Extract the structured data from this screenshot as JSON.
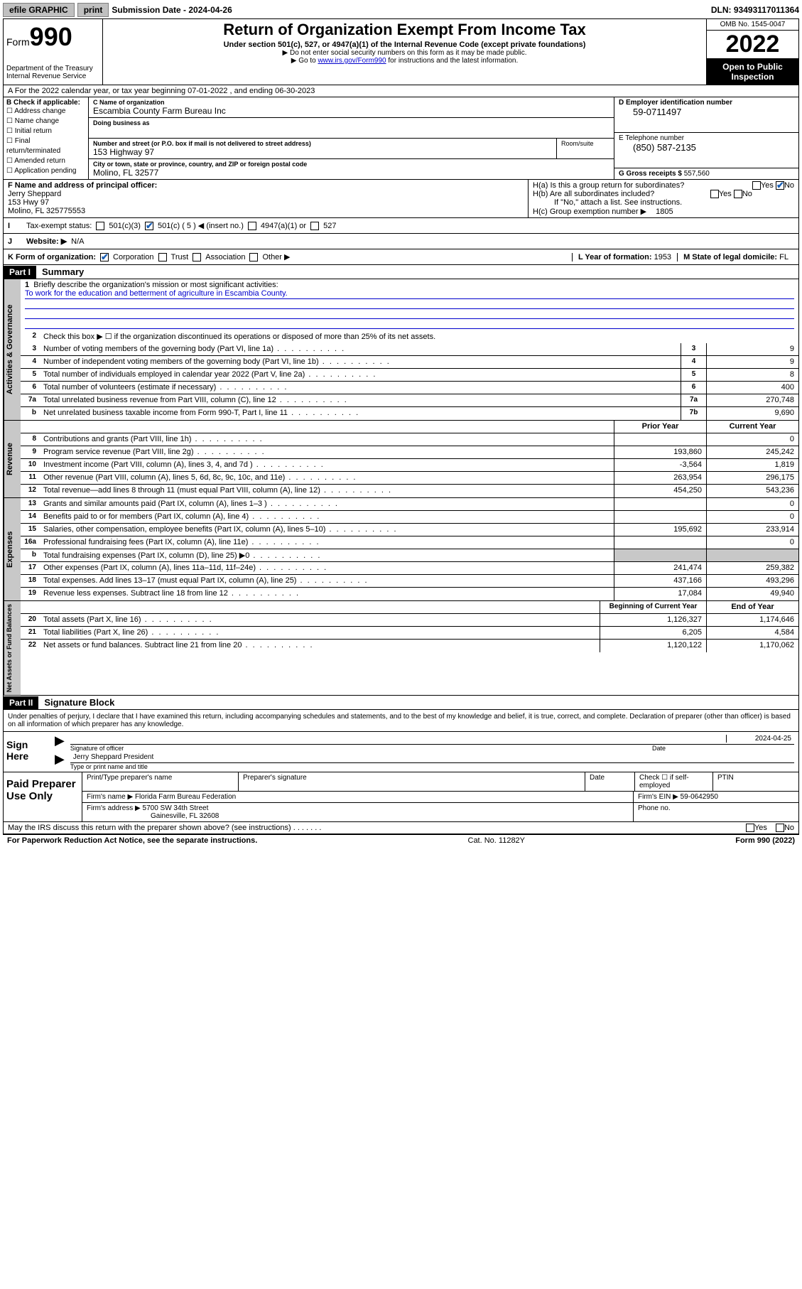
{
  "topbar": {
    "efile": "efile GRAPHIC",
    "print": "print",
    "sub_label": "Submission Date - 2024-04-26",
    "dln": "DLN: 93493117011364"
  },
  "header": {
    "form_word": "Form",
    "form_num": "990",
    "dept": "Department of the Treasury\nInternal Revenue Service",
    "title": "Return of Organization Exempt From Income Tax",
    "sub1": "Under section 501(c), 527, or 4947(a)(1) of the Internal Revenue Code (except private foundations)",
    "sub2": "▶ Do not enter social security numbers on this form as it may be made public.",
    "sub3_pre": "▶ Go to ",
    "sub3_link": "www.irs.gov/Form990",
    "sub3_post": " for instructions and the latest information.",
    "omb": "OMB No. 1545-0047",
    "year": "2022",
    "inspection": "Open to Public Inspection"
  },
  "row_a": "A For the 2022 calendar year, or tax year beginning 07-01-2022   , and ending 06-30-2023",
  "col_b": {
    "title": "B Check if applicable:",
    "items": [
      "Address change",
      "Name change",
      "Initial return",
      "Final return/terminated",
      "Amended return",
      "Application pending"
    ]
  },
  "c": {
    "name_lbl": "C Name of organization",
    "name": "Escambia County Farm Bureau Inc",
    "dba_lbl": "Doing business as",
    "addr_lbl": "Number and street (or P.O. box if mail is not delivered to street address)",
    "room_lbl": "Room/suite",
    "addr": "153 Highway 97",
    "city_lbl": "City or town, state or province, country, and ZIP or foreign postal code",
    "city": "Molino, FL  32577"
  },
  "d": {
    "lbl": "D Employer identification number",
    "val": "59-0711497"
  },
  "e": {
    "lbl": "E Telephone number",
    "val": "(850) 587-2135"
  },
  "g": {
    "lbl": "G Gross receipts $",
    "val": "557,560"
  },
  "f": {
    "lbl": "F Name and address of principal officer:",
    "name": "Jerry Sheppard",
    "addr1": "153 Hwy 97",
    "addr2": "Molino, FL  325775553"
  },
  "h": {
    "a": "H(a)  Is this a group return for subordinates?",
    "b": "H(b)  Are all subordinates included?",
    "b_note": "If \"No,\" attach a list. See instructions.",
    "c": "H(c)  Group exemption number ▶",
    "c_val": "1805",
    "yes": "Yes",
    "no": "No"
  },
  "i": {
    "lbl": "Tax-exempt status:",
    "opts": [
      "501(c)(3)",
      "501(c) ( 5 ) ◀ (insert no.)",
      "4947(a)(1) or",
      "527"
    ]
  },
  "j": {
    "lbl": "Website: ▶",
    "val": "N/A"
  },
  "k": {
    "lbl": "K Form of organization:",
    "opts": [
      "Corporation",
      "Trust",
      "Association",
      "Other ▶"
    ],
    "l_lbl": "L Year of formation:",
    "l_val": "1953",
    "m_lbl": "M State of legal domicile:",
    "m_val": "FL"
  },
  "part1": {
    "hdr": "Part I",
    "title": "Summary"
  },
  "p1": {
    "l1": "Briefly describe the organization's mission or most significant activities:",
    "mission": "To work for the education and betterment of agriculture in Escambia County.",
    "l2": "Check this box ▶ ☐  if the organization discontinued its operations or disposed of more than 25% of its net assets.",
    "lines_gov": [
      {
        "n": "3",
        "d": "Number of voting members of the governing body (Part VI, line 1a)",
        "box": "3",
        "v": "9"
      },
      {
        "n": "4",
        "d": "Number of independent voting members of the governing body (Part VI, line 1b)",
        "box": "4",
        "v": "9"
      },
      {
        "n": "5",
        "d": "Total number of individuals employed in calendar year 2022 (Part V, line 2a)",
        "box": "5",
        "v": "8"
      },
      {
        "n": "6",
        "d": "Total number of volunteers (estimate if necessary)",
        "box": "6",
        "v": "400"
      },
      {
        "n": "7a",
        "d": "Total unrelated business revenue from Part VIII, column (C), line 12",
        "box": "7a",
        "v": "270,748"
      },
      {
        "n": "b",
        "d": "Net unrelated business taxable income from Form 990-T, Part I, line 11",
        "box": "7b",
        "v": "9,690"
      }
    ],
    "col_hdr_prior": "Prior Year",
    "col_hdr_curr": "Current Year",
    "rev": [
      {
        "n": "8",
        "d": "Contributions and grants (Part VIII, line 1h)",
        "p": "",
        "c": "0"
      },
      {
        "n": "9",
        "d": "Program service revenue (Part VIII, line 2g)",
        "p": "193,860",
        "c": "245,242"
      },
      {
        "n": "10",
        "d": "Investment income (Part VIII, column (A), lines 3, 4, and 7d )",
        "p": "-3,564",
        "c": "1,819"
      },
      {
        "n": "11",
        "d": "Other revenue (Part VIII, column (A), lines 5, 6d, 8c, 9c, 10c, and 11e)",
        "p": "263,954",
        "c": "296,175"
      },
      {
        "n": "12",
        "d": "Total revenue—add lines 8 through 11 (must equal Part VIII, column (A), line 12)",
        "p": "454,250",
        "c": "543,236"
      }
    ],
    "exp": [
      {
        "n": "13",
        "d": "Grants and similar amounts paid (Part IX, column (A), lines 1–3 )",
        "p": "",
        "c": "0"
      },
      {
        "n": "14",
        "d": "Benefits paid to or for members (Part IX, column (A), line 4)",
        "p": "",
        "c": "0"
      },
      {
        "n": "15",
        "d": "Salaries, other compensation, employee benefits (Part IX, column (A), lines 5–10)",
        "p": "195,692",
        "c": "233,914"
      },
      {
        "n": "16a",
        "d": "Professional fundraising fees (Part IX, column (A), line 11e)",
        "p": "",
        "c": "0"
      },
      {
        "n": "b",
        "d": "Total fundraising expenses (Part IX, column (D), line 25) ▶0",
        "p": "GRAY",
        "c": "GRAY"
      },
      {
        "n": "17",
        "d": "Other expenses (Part IX, column (A), lines 11a–11d, 11f–24e)",
        "p": "241,474",
        "c": "259,382"
      },
      {
        "n": "18",
        "d": "Total expenses. Add lines 13–17 (must equal Part IX, column (A), line 25)",
        "p": "437,166",
        "c": "493,296"
      },
      {
        "n": "19",
        "d": "Revenue less expenses. Subtract line 18 from line 12",
        "p": "17,084",
        "c": "49,940"
      }
    ],
    "net_hdr_beg": "Beginning of Current Year",
    "net_hdr_end": "End of Year",
    "net": [
      {
        "n": "20",
        "d": "Total assets (Part X, line 16)",
        "p": "1,126,327",
        "c": "1,174,646"
      },
      {
        "n": "21",
        "d": "Total liabilities (Part X, line 26)",
        "p": "6,205",
        "c": "4,584"
      },
      {
        "n": "22",
        "d": "Net assets or fund balances. Subtract line 21 from line 20",
        "p": "1,120,122",
        "c": "1,170,062"
      }
    ]
  },
  "tabs": {
    "gov": "Activities & Governance",
    "rev": "Revenue",
    "exp": "Expenses",
    "net": "Net Assets or Fund Balances"
  },
  "part2": {
    "hdr": "Part II",
    "title": "Signature Block"
  },
  "sig": {
    "decl": "Under penalties of perjury, I declare that I have examined this return, including accompanying schedules and statements, and to the best of my knowledge and belief, it is true, correct, and complete. Declaration of preparer (other than officer) is based on all information of which preparer has any knowledge.",
    "sign_here": "Sign Here",
    "sig_officer": "Signature of officer",
    "date": "Date",
    "date_val": "2024-04-25",
    "name_title": "Jerry Sheppard President",
    "name_lbl": "Type or print name and title"
  },
  "prep": {
    "title": "Paid Preparer Use Only",
    "h1": "Print/Type preparer's name",
    "h2": "Preparer's signature",
    "h3": "Date",
    "h4_a": "Check",
    "h4_b": "if self-employed",
    "h5": "PTIN",
    "firm_name_lbl": "Firm's name    ▶",
    "firm_name": "Florida Farm Bureau Federation",
    "firm_ein_lbl": "Firm's EIN ▶",
    "firm_ein": "59-0642950",
    "firm_addr_lbl": "Firm's address ▶",
    "firm_addr1": "5700 SW 34th Street",
    "firm_addr2": "Gainesville, FL  32608",
    "phone_lbl": "Phone no."
  },
  "discuss": {
    "q": "May the IRS discuss this return with the preparer shown above? (see instructions)",
    "yes": "Yes",
    "no": "No"
  },
  "footer": {
    "left": "For Paperwork Reduction Act Notice, see the separate instructions.",
    "mid": "Cat. No. 11282Y",
    "right": "Form 990 (2022)"
  }
}
